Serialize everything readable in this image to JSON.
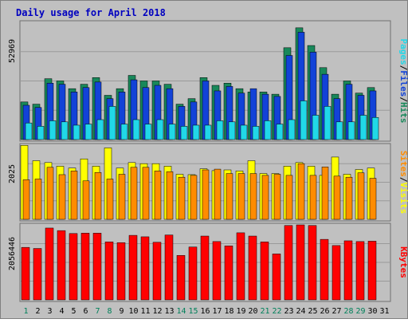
{
  "chart_data": {
    "type": "bar",
    "title": "Daily usage for April 2018",
    "categories": [
      "1",
      "2",
      "3",
      "4",
      "5",
      "6",
      "7",
      "8",
      "9",
      "10",
      "11",
      "12",
      "13",
      "14",
      "15",
      "16",
      "17",
      "18",
      "19",
      "20",
      "21",
      "22",
      "23",
      "24",
      "25",
      "26",
      "27",
      "28",
      "29",
      "30",
      "31"
    ],
    "weekend_days": [
      "1",
      "7",
      "8",
      "14",
      "15",
      "21",
      "22",
      "28",
      "29"
    ],
    "panels": [
      {
        "id": "requests",
        "max_label": "52969",
        "ymax": 52969,
        "right_label": [
          "Pages",
          "/",
          "Files",
          "/",
          "Hits"
        ],
        "series": [
          {
            "name": "Hits",
            "color": "#18885a",
            "values": [
              17000,
              16000,
              27500,
              26500,
              23000,
              25000,
              28000,
              20000,
              23000,
              29000,
              26500,
              26500,
              25000,
              16000,
              18500,
              28000,
              24500,
              25500,
              23000,
              21500,
              21500,
              20500,
              41500,
              50500,
              42500,
              32500,
              20500,
              26500,
              21000,
              23500,
              0
            ]
          },
          {
            "name": "Files",
            "color": "#1242d8",
            "values": [
              15500,
              14500,
              25500,
              25000,
              21500,
              23500,
              26000,
              18500,
              21500,
              27000,
              23500,
              24500,
              23000,
              15000,
              17000,
              26500,
              22000,
              24000,
              21000,
              23000,
              20500,
              19500,
              38000,
              48500,
              39500,
              29500,
              18500,
              25000,
              20000,
              22000,
              0
            ]
          },
          {
            "name": "Pages",
            "color": "#21d8e8",
            "values": [
              7500,
              6000,
              8500,
              8000,
              6500,
              7000,
              9000,
              15000,
              7000,
              9000,
              7000,
              9000,
              7000,
              6000,
              6500,
              6500,
              8500,
              8000,
              6500,
              6000,
              8500,
              7000,
              9000,
              17500,
              11000,
              15000,
              8000,
              8000,
              11000,
              10000,
              0
            ]
          }
        ]
      },
      {
        "id": "visits",
        "max_label": "2025",
        "ymax": 2025,
        "right_label": [
          "Sites",
          "/",
          "Visits"
        ],
        "series": [
          {
            "name": "Visits",
            "color": "#ffff00",
            "values": [
              2020,
              1600,
              1550,
              1450,
              1400,
              1650,
              1450,
              1950,
              1400,
              1550,
              1520,
              1520,
              1450,
              1230,
              1220,
              1380,
              1330,
              1350,
              1320,
              1600,
              1250,
              1250,
              1450,
              1550,
              1450,
              1200,
              1700,
              1230,
              1360,
              1400,
              0
            ]
          },
          {
            "name": "Sites",
            "color": "#ff8c00",
            "values": [
              1080,
              1100,
              1420,
              1220,
              1320,
              1050,
              1280,
              1100,
              1230,
              1420,
              1420,
              1320,
              1300,
              1150,
              1200,
              1350,
              1370,
              1250,
              1250,
              1250,
              1200,
              1230,
              1200,
              1520,
              1200,
              1430,
              1180,
              1150,
              1270,
              1120,
              0
            ]
          }
        ]
      },
      {
        "id": "kbytes",
        "max_label": "2056446",
        "ymax": 2056446,
        "right_label": [
          "KBytes"
        ],
        "series": [
          {
            "name": "KBytes",
            "color": "#ff0000",
            "values": [
              1440000,
              1410000,
              1970000,
              1900000,
              1820000,
              1830000,
              1830000,
              1590000,
              1570000,
              1770000,
              1730000,
              1580000,
              1780000,
              1220000,
              1450000,
              1750000,
              1600000,
              1480000,
              1840000,
              1750000,
              1590000,
              1260000,
              2040000,
              2056446,
              2040000,
              1660000,
              1490000,
              1620000,
              1600000,
              1610000,
              0
            ]
          }
        ]
      }
    ]
  }
}
